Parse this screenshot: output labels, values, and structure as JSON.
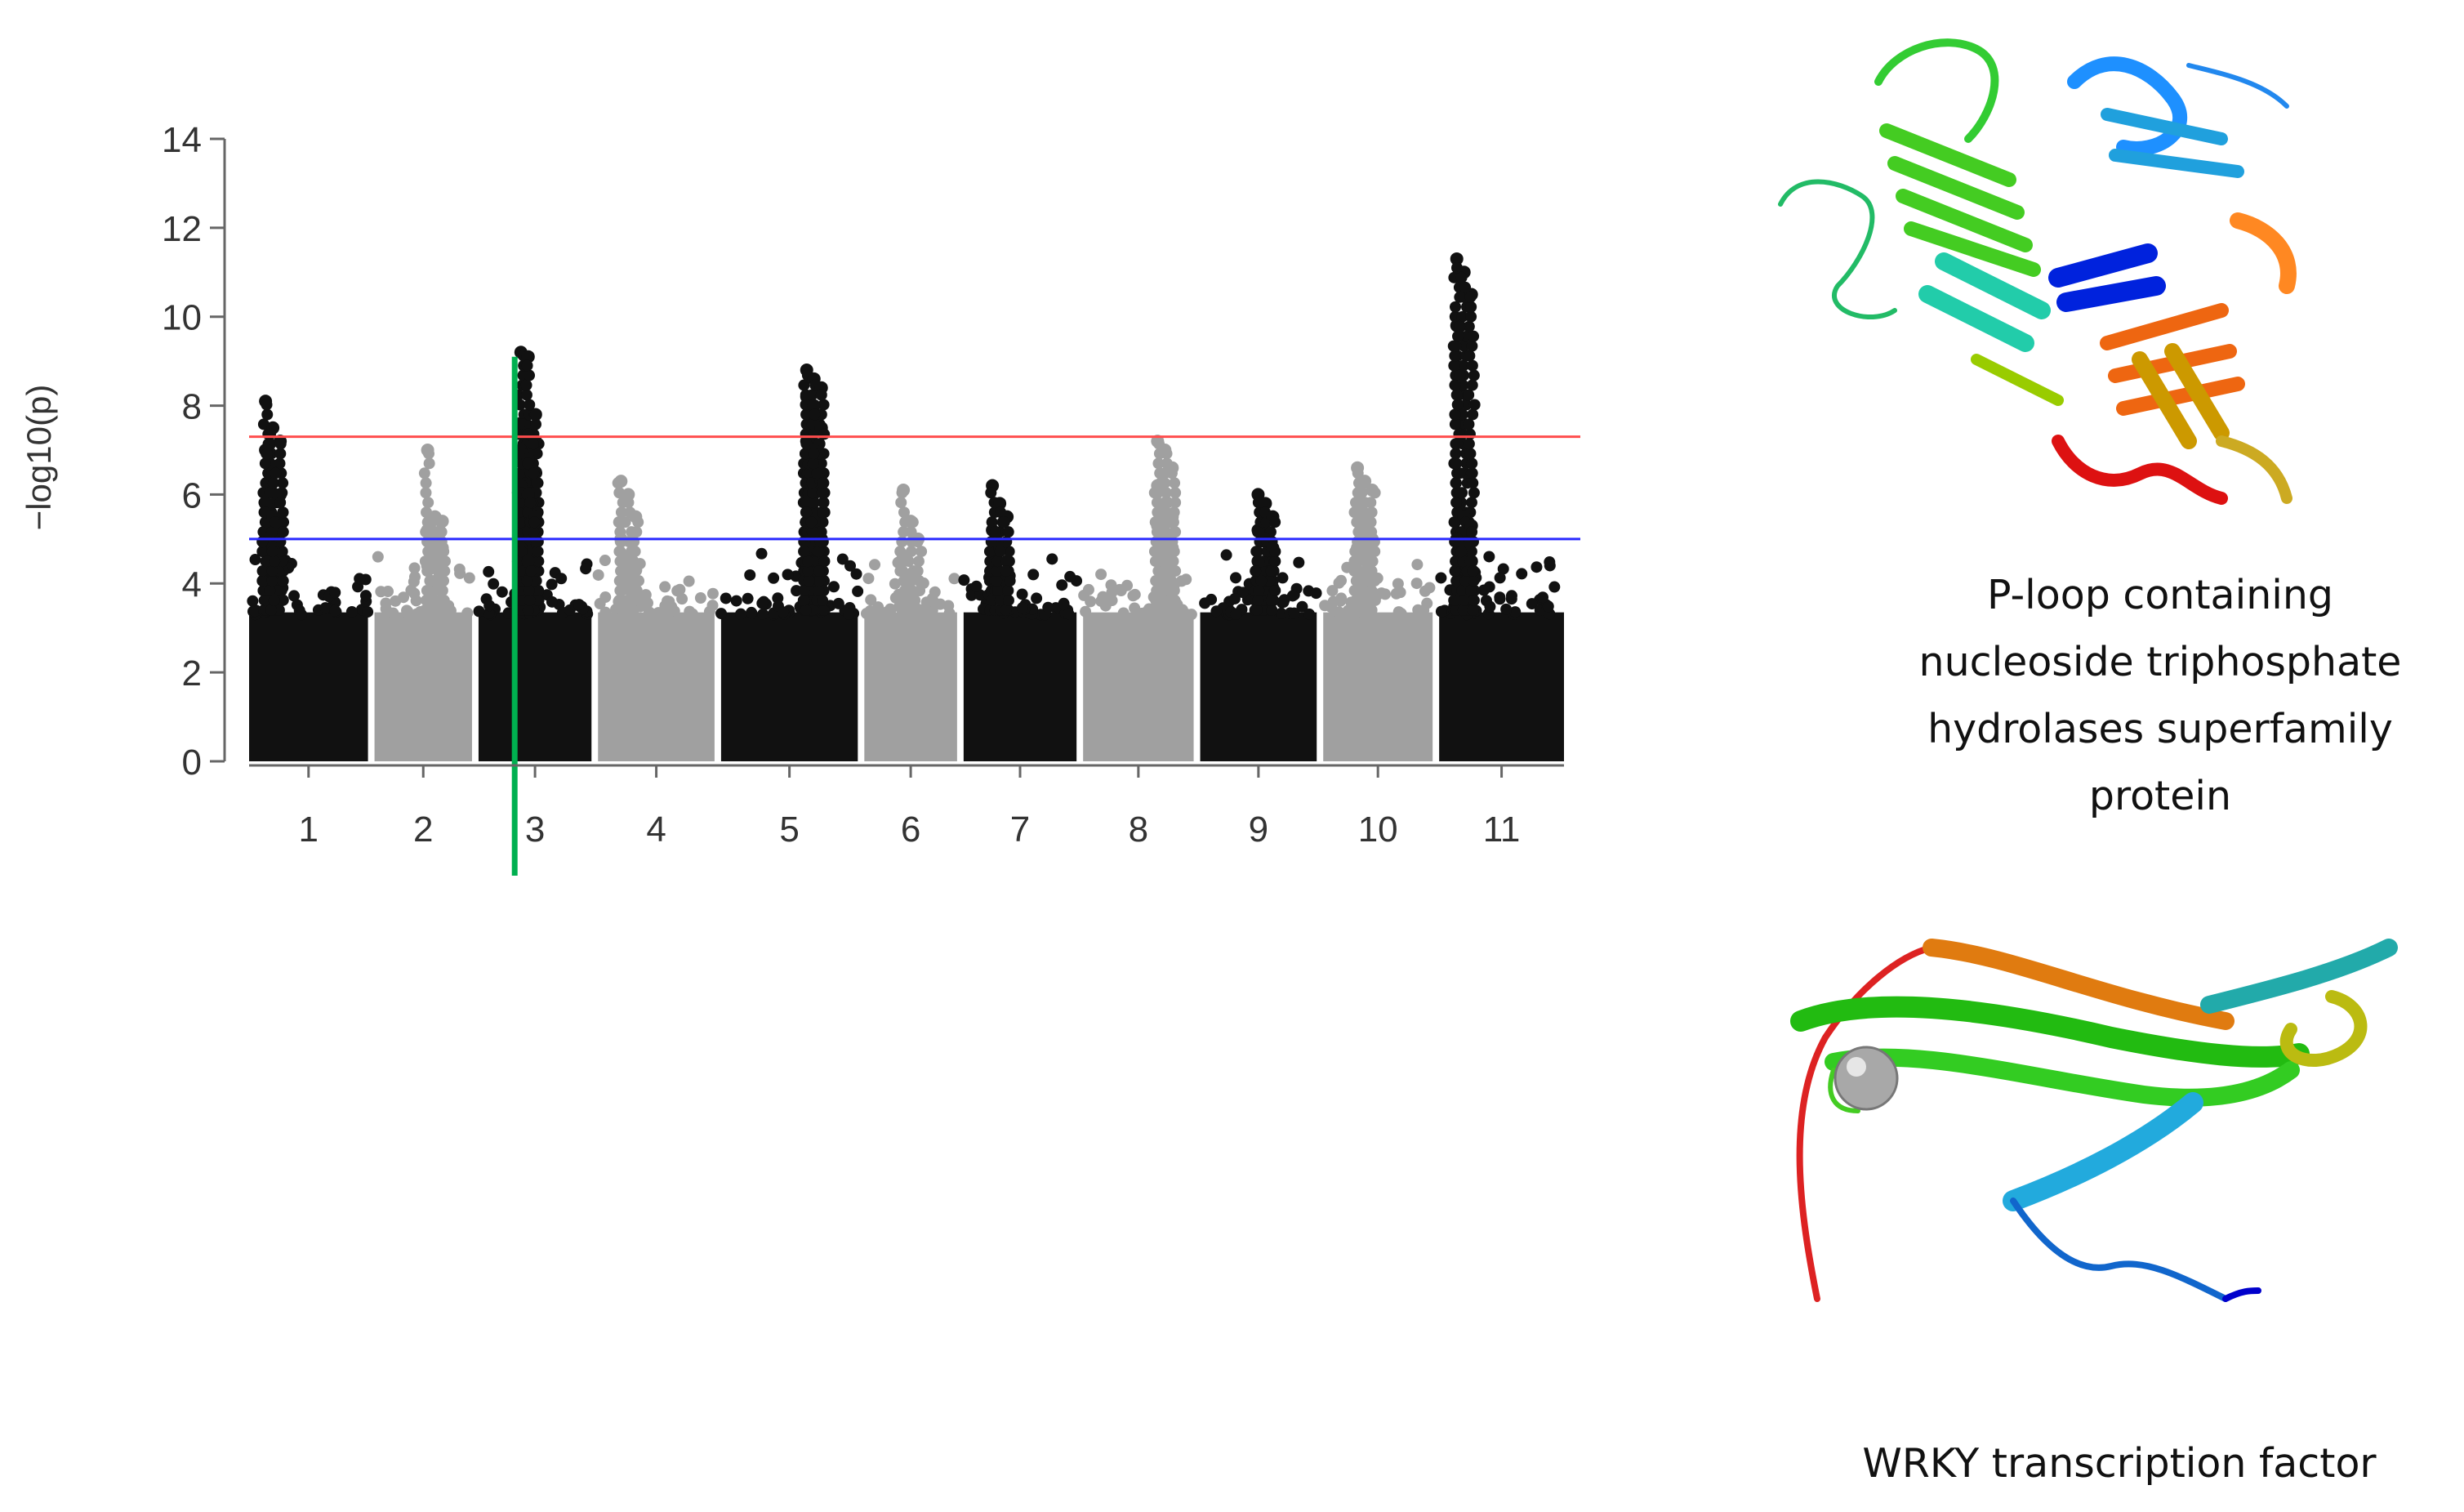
{
  "chart_data": {
    "type": "scatter",
    "subtype": "manhattan",
    "ylabel": "−log10(p)",
    "ylim": [
      0,
      14
    ],
    "yticks": [
      0,
      2,
      4,
      6,
      8,
      10,
      12,
      14
    ],
    "chromosomes": [
      {
        "label": "1",
        "color": "#111111",
        "peak_values": [
          8.1,
          7.5,
          7.2,
          7.0,
          6.5,
          6.0,
          5.8,
          5.5,
          5.3,
          5.0,
          4.8
        ]
      },
      {
        "label": "2",
        "color": "#a0a0a0",
        "peak_values": [
          7.0,
          5.5,
          5.4,
          5.2,
          5.0,
          4.8,
          4.4
        ]
      },
      {
        "label": "3",
        "color": "#111111",
        "peak_values": [
          9.2,
          9.1,
          7.8,
          7.6,
          7.4,
          7.2,
          7.0,
          6.8,
          6.5,
          6.2,
          6.0,
          5.5,
          4.8,
          4.5
        ]
      },
      {
        "label": "4",
        "color": "#a0a0a0",
        "peak_values": [
          6.3,
          6.0,
          5.5,
          5.0,
          4.6,
          4.3
        ]
      },
      {
        "label": "5",
        "color": "#111111",
        "peak_values": [
          8.8,
          8.6,
          8.4,
          8.2,
          8.0,
          7.5,
          7.2,
          7.0,
          6.3,
          5.8,
          5.4,
          5.0,
          4.8
        ]
      },
      {
        "label": "6",
        "color": "#a0a0a0",
        "peak_values": [
          6.1,
          5.4,
          5.0,
          4.6,
          4.2
        ]
      },
      {
        "label": "7",
        "color": "#111111",
        "peak_values": [
          6.2,
          5.8,
          5.5,
          5.2,
          4.8,
          4.5
        ]
      },
      {
        "label": "8",
        "color": "#a0a0a0",
        "peak_values": [
          7.2,
          7.0,
          6.6,
          6.2,
          5.8,
          5.5,
          5.3,
          5.0,
          4.8
        ]
      },
      {
        "label": "9",
        "color": "#111111",
        "peak_values": [
          6.0,
          5.8,
          5.5,
          5.2,
          5.0,
          4.8,
          4.5
        ]
      },
      {
        "label": "10",
        "color": "#a0a0a0",
        "peak_values": [
          6.6,
          6.3,
          6.1,
          5.8,
          5.4,
          5.0,
          4.8,
          4.6
        ]
      },
      {
        "label": "11",
        "color": "#111111",
        "peak_values": [
          11.3,
          11.0,
          10.5,
          9.8,
          5.5,
          5.3,
          5.0,
          4.8,
          4.5
        ]
      }
    ],
    "thresholds": [
      {
        "value": 7.3,
        "color": "#ff4d4d"
      },
      {
        "value": 5.0,
        "color": "#2a2aff"
      }
    ],
    "highlight_chromosome": "3",
    "highlight_color": "#00b050",
    "grid": false,
    "legend": "none"
  },
  "annotations": [
    {
      "caption": "P-loop containing nucleoside triphosphate hydrolases superfamily protein",
      "image": "protein-ribbon-structure"
    },
    {
      "caption": "WRKY transcription factor",
      "image": "protein-ribbon-structure"
    }
  ],
  "captions": {
    "p_loop": [
      "P-loop containing",
      "nucleoside triphosphate",
      "hydrolases superfamily",
      "protein"
    ],
    "wrky": "WRKY transcription factor"
  }
}
